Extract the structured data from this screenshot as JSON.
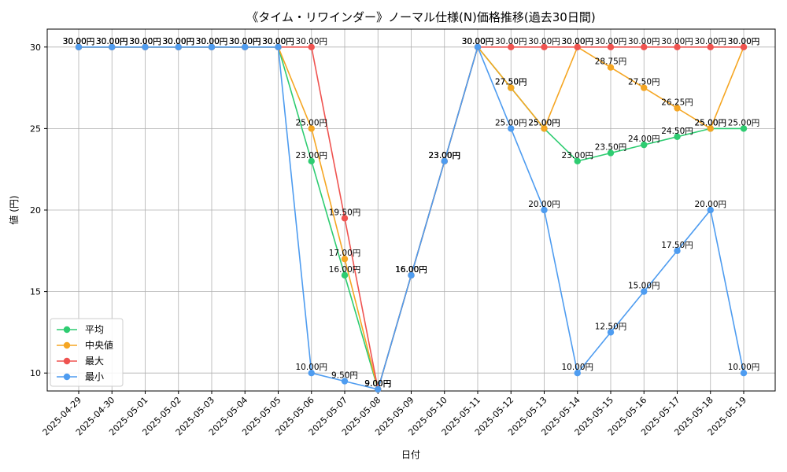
{
  "chart_data": {
    "type": "line",
    "title": "《タイム・リワインダー》ノーマル仕様(N)価格推移(過去30日間)",
    "xlabel": "日付",
    "ylabel": "値 (円)",
    "ylim": [
      8.9,
      31.1
    ],
    "yticks": [
      10,
      15,
      20,
      25,
      30
    ],
    "grid": true,
    "legend_position": "lower-left",
    "label_suffix": "円",
    "categories": [
      "2025-04-29",
      "2025-04-30",
      "2025-05-01",
      "2025-05-02",
      "2025-05-03",
      "2025-05-04",
      "2025-05-05",
      "2025-05-06",
      "2025-05-07",
      "2025-05-08",
      "2025-05-09",
      "2025-05-10",
      "2025-05-11",
      "2025-05-12",
      "2025-05-13",
      "2025-05-14",
      "2025-05-15",
      "2025-05-16",
      "2025-05-17",
      "2025-05-18",
      "2025-05-19"
    ],
    "series": [
      {
        "name": "平均",
        "color": "#2ecc71",
        "values": [
          30,
          30,
          30,
          30,
          30,
          30,
          30,
          23,
          16,
          9,
          16,
          23,
          30,
          27.5,
          25,
          23,
          23.5,
          24,
          24.5,
          25,
          25
        ]
      },
      {
        "name": "中央値",
        "color": "#f5a623",
        "values": [
          30,
          30,
          30,
          30,
          30,
          30,
          30,
          25,
          17,
          9,
          16,
          23,
          30,
          27.5,
          25,
          30,
          28.75,
          27.5,
          26.25,
          25,
          30
        ]
      },
      {
        "name": "最大",
        "color": "#ef5350",
        "values": [
          30,
          30,
          30,
          30,
          30,
          30,
          30,
          30,
          19.5,
          9,
          16,
          23,
          30,
          30,
          30,
          30,
          30,
          30,
          30,
          30,
          30
        ]
      },
      {
        "name": "最小",
        "color": "#4e9cf0",
        "values": [
          30,
          30,
          30,
          30,
          30,
          30,
          30,
          10,
          9.5,
          9,
          16,
          23,
          30,
          25,
          20,
          10,
          12.5,
          15,
          17.5,
          20,
          10
        ]
      }
    ]
  }
}
